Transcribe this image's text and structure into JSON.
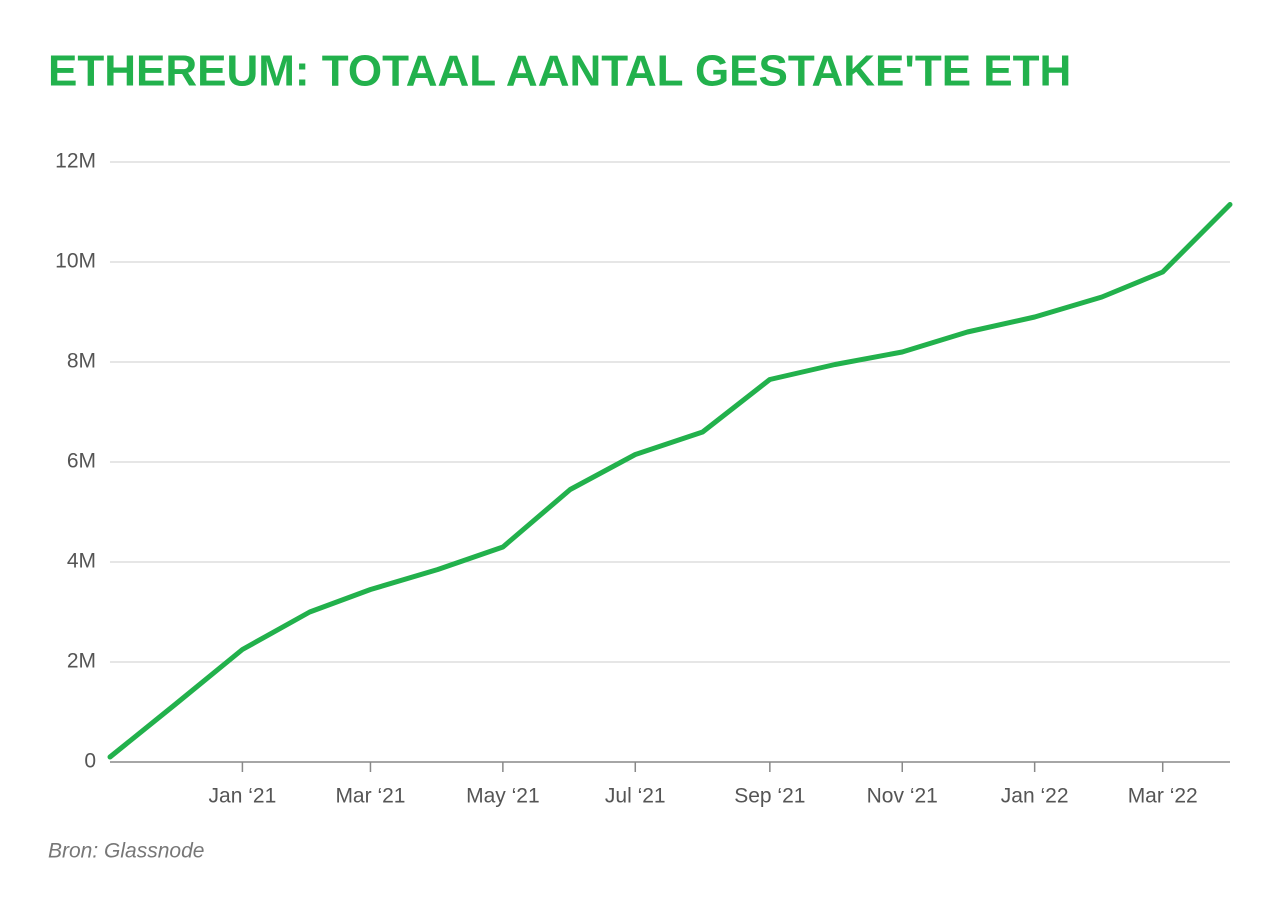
{
  "chart_data": {
    "type": "line",
    "title": "ETHEREUM: TOTAAL AANTAL GESTAKE'TE ETH",
    "source": "Bron: Glassnode",
    "x": [
      "2020-11",
      "2020-12",
      "2021-01",
      "2021-02",
      "2021-03",
      "2021-04",
      "2021-05",
      "2021-06",
      "2021-07",
      "2021-08",
      "2021-09",
      "2021-10",
      "2021-11",
      "2021-12",
      "2022-01",
      "2022-02",
      "2022-03",
      "2022-04"
    ],
    "values": [
      100000,
      1150000,
      2250000,
      3000000,
      3450000,
      3850000,
      4300000,
      5450000,
      6150000,
      6600000,
      7650000,
      7950000,
      8200000,
      8600000,
      8900000,
      9300000,
      9800000,
      11150000
    ],
    "color": "#22b14c",
    "xlim": [
      "2020-11",
      "2022-04"
    ],
    "xticks": [
      {
        "value": "2021-01",
        "label": "Jan ‘21"
      },
      {
        "value": "2021-03",
        "label": "Mar ‘21"
      },
      {
        "value": "2021-05",
        "label": "May ‘21"
      },
      {
        "value": "2021-07",
        "label": "Jul ‘21"
      },
      {
        "value": "2021-09",
        "label": "Sep ‘21"
      },
      {
        "value": "2021-11",
        "label": "Nov ‘21"
      },
      {
        "value": "2022-01",
        "label": "Jan ‘22"
      },
      {
        "value": "2022-03",
        "label": "Mar ‘22"
      }
    ],
    "ylim": [
      0,
      12000000
    ],
    "yticks": [
      0,
      {
        "value": 2000000,
        "label": "2M"
      },
      {
        "value": 4000000,
        "label": "4M"
      },
      {
        "value": 6000000,
        "label": "6M"
      },
      {
        "value": 8000000,
        "label": "8M"
      },
      {
        "value": 10000000,
        "label": "10M"
      },
      {
        "value": 12000000,
        "label": "12M"
      }
    ],
    "grid": true
  }
}
